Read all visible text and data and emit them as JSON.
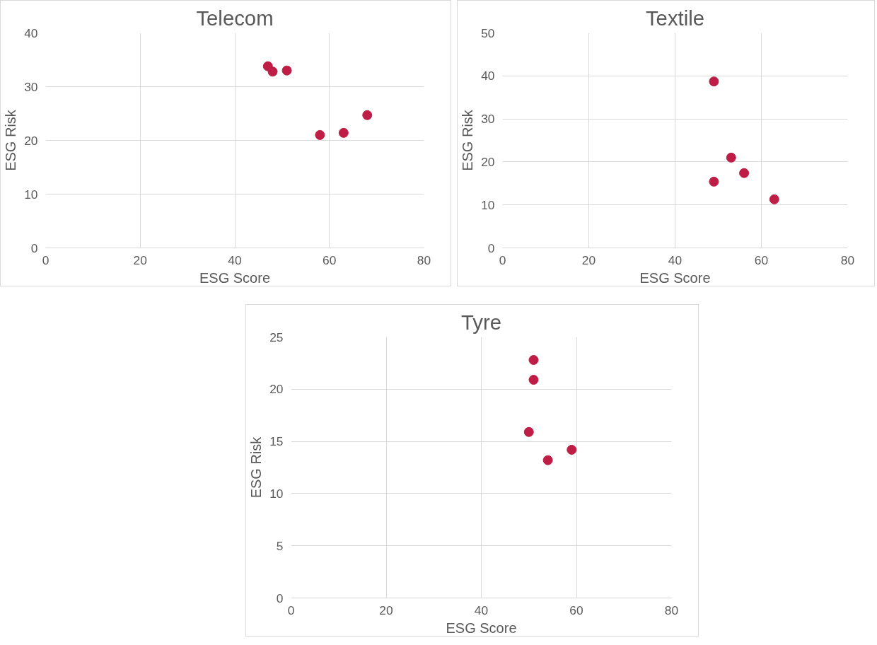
{
  "chart_data": [
    {
      "type": "scatter",
      "title": "Telecom",
      "xlabel": "ESG Score",
      "ylabel": "ESG Risk",
      "color": "#be1e45",
      "marker": "circle",
      "grid": true,
      "xlim": [
        0,
        80
      ],
      "xticks": [
        0,
        20,
        40,
        60,
        80
      ],
      "ylim": [
        0,
        40
      ],
      "yticks": [
        0,
        10,
        20,
        30,
        40
      ],
      "x": [
        47,
        48,
        51,
        58,
        63,
        68
      ],
      "values": [
        33.8,
        32.8,
        33,
        21,
        21.4,
        24.7
      ]
    },
    {
      "type": "scatter",
      "title": "Textile",
      "xlabel": "ESG Score",
      "ylabel": "ESG Risk",
      "color": "#be1e45",
      "marker": "circle",
      "grid": true,
      "xlim": [
        0,
        80
      ],
      "xticks": [
        0,
        20,
        40,
        60,
        80
      ],
      "ylim": [
        0,
        50
      ],
      "yticks": [
        0,
        10,
        20,
        30,
        40,
        50
      ],
      "x": [
        49,
        49,
        53,
        56,
        63
      ],
      "values": [
        38.7,
        15.4,
        21,
        17.4,
        11.3
      ]
    },
    {
      "type": "scatter",
      "title": "Tyre",
      "xlabel": "ESG Score",
      "ylabel": "ESG Risk",
      "color": "#be1e45",
      "marker": "circle",
      "grid": true,
      "xlim": [
        0,
        80
      ],
      "xticks": [
        0,
        20,
        40,
        60,
        80
      ],
      "ylim": [
        0,
        25
      ],
      "yticks": [
        0,
        5,
        10,
        15,
        20,
        25
      ],
      "x": [
        51,
        51,
        50,
        54,
        59
      ],
      "values": [
        22.8,
        20.9,
        15.9,
        13.2,
        14.2
      ]
    }
  ]
}
